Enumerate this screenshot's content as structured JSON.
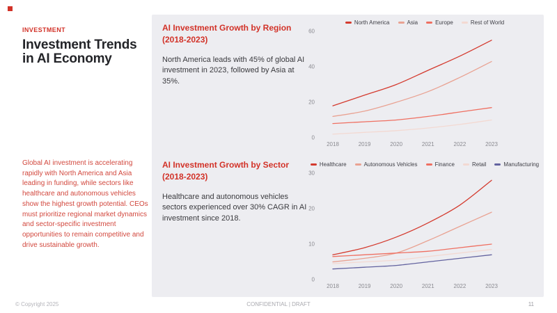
{
  "slide": {
    "eyebrow": "INVESTMENT",
    "title": "Investment Trends in AI Economy",
    "summary": "Global AI investment is accelerating rapidly with North America and Asia leading in funding, while sectors like healthcare and autonomous vehicles show the highest growth potential. CEOs must prioritize regional market dynamics and sector-specific investment opportunities to remain competitive and drive sustainable growth."
  },
  "sections": [
    {
      "heading_lines": [
        "AI Investment Growth by Region",
        "(2018-2023)"
      ],
      "body": "North America leads with 45% of global AI investment in 2023, followed by Asia at 35%."
    },
    {
      "heading_lines": [
        "AI Investment Growth by Sector",
        "(2018-2023)"
      ],
      "body": "Healthcare and autonomous vehicles sectors experienced over 30% CAGR in AI investment since 2018."
    }
  ],
  "footer": {
    "copyright": "© Copyright 2025",
    "classification": "CONFIDENTIAL | DRAFT",
    "page_number": "11"
  },
  "colors": {
    "accent_red": "#d23228",
    "sidebar_text_red": "#d2483e",
    "panel_background": "#ededf1",
    "title_text": "#232428",
    "body_text": "#3a3a3e",
    "axis_text": "#8a8a90",
    "footer_text": "#b4b4ba"
  },
  "chart_data": [
    {
      "type": "line",
      "title": "AI Investment Growth by Region (2018-2023)",
      "x": [
        2018,
        2019,
        2020,
        2021,
        2022,
        2023
      ],
      "series": [
        {
          "name": "North America",
          "color": "#d43a2e",
          "values": [
            18,
            24,
            30,
            38,
            46,
            55
          ]
        },
        {
          "name": "Asia",
          "color": "#e9a292",
          "values": [
            12,
            15,
            20,
            26,
            34,
            43
          ]
        },
        {
          "name": "Europe",
          "color": "#ef6f61",
          "values": [
            8,
            9,
            10,
            12,
            14.5,
            17
          ]
        },
        {
          "name": "Rest of World",
          "color": "#f3d9d2",
          "values": [
            2,
            3,
            4,
            5.5,
            7.5,
            10
          ]
        }
      ],
      "ylim": [
        0,
        60
      ],
      "yticks": [
        0,
        20,
        40,
        60
      ],
      "legend_position": "top",
      "grid": false
    },
    {
      "type": "line",
      "title": "AI Investment Growth by Sector (2018-2023)",
      "x": [
        2018,
        2019,
        2020,
        2021,
        2022,
        2023
      ],
      "series": [
        {
          "name": "Healthcare",
          "color": "#d43a2e",
          "values": [
            7,
            9,
            12,
            16,
            21,
            28
          ]
        },
        {
          "name": "Autonomous Vehicles",
          "color": "#e9a292",
          "values": [
            5,
            6,
            7.5,
            11,
            15,
            19
          ]
        },
        {
          "name": "Finance",
          "color": "#ef6f61",
          "values": [
            6.5,
            7,
            7.5,
            8,
            9,
            10
          ]
        },
        {
          "name": "Retail",
          "color": "#f3d9d2",
          "values": [
            4.5,
            5,
            5.5,
            6.5,
            7.5,
            8.5
          ]
        },
        {
          "name": "Manufacturing",
          "color": "#62629f",
          "values": [
            3,
            3.5,
            4,
            5,
            6,
            7
          ]
        }
      ],
      "ylim": [
        0,
        30
      ],
      "yticks": [
        0,
        10,
        20,
        30
      ],
      "legend_position": "top",
      "grid": false
    }
  ]
}
